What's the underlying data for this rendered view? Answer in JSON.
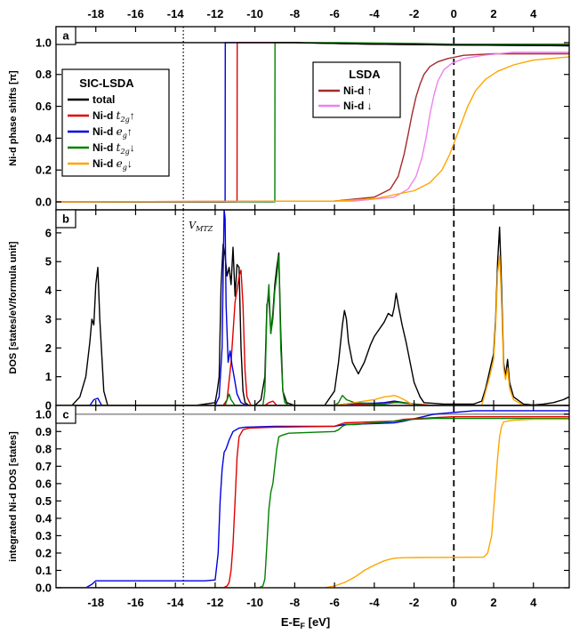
{
  "chart_data": {
    "type": "line",
    "xlabel": "E-E",
    "xlabel_sub": "F",
    "xlabel_unit": " [eV]",
    "xlim": [
      -20,
      5.8
    ],
    "xticks": [
      -18,
      -16,
      -14,
      -12,
      -10,
      -8,
      -6,
      -4,
      -2,
      0,
      2,
      4
    ],
    "vlines": [
      {
        "x": 0,
        "style": "dashed"
      },
      {
        "x": -13.6,
        "style": "dotted",
        "label": "V",
        "label_sub": "MTZ"
      }
    ],
    "colors": {
      "total": "#000000",
      "t2g_up": "#e00000",
      "eg_up": "#0000e0",
      "t2g_dn": "#008000",
      "eg_dn": "#ffa500",
      "lsda_up": "#a52a2a",
      "lsda_dn": "#ee82ee"
    },
    "panels": [
      {
        "label": "a",
        "ylabel": "Ni-d phase shifts [π]",
        "ylim": [
          -0.05,
          1.1
        ],
        "yticks": [
          "0.0",
          "0.2",
          "0.4",
          "0.6",
          "0.8",
          "1.0"
        ],
        "legend_sic": {
          "title": "SIC-LSDA",
          "entries": [
            {
              "prefix": "total",
              "sym": "",
              "sub": "",
              "arrow": ""
            },
            {
              "prefix": "Ni-d ",
              "sym": "t",
              "sub": "2g",
              "arrow": "↑"
            },
            {
              "prefix": "Ni-d ",
              "sym": "e",
              "sub": "g",
              "arrow": "↑"
            },
            {
              "prefix": "Ni-d ",
              "sym": "t",
              "sub": "2g",
              "arrow": "↓"
            },
            {
              "prefix": "Ni-d ",
              "sym": "e",
              "sub": "g",
              "arrow": "↓"
            }
          ]
        },
        "legend_lsda": {
          "title": "LSDA",
          "entries": [
            {
              "prefix": "Ni-d ",
              "arrow": "↑"
            },
            {
              "prefix": "Ni-d ",
              "arrow": "↓"
            }
          ]
        },
        "series": [
          {
            "key": "eg_up",
            "x": [
              -20,
              -11.5,
              -11.49,
              -8,
              -4,
              0,
              5.8
            ],
            "y": [
              0,
              0,
              1.0,
              1.0,
              0.99,
              0.985,
              0.98
            ]
          },
          {
            "key": "t2g_up",
            "x": [
              -20,
              -10.9,
              -10.89,
              -8,
              -4,
              0,
              5.8
            ],
            "y": [
              0,
              0,
              1.0,
              1.0,
              0.99,
              0.985,
              0.985
            ]
          },
          {
            "key": "t2g_dn",
            "x": [
              -20,
              -9.0,
              -8.99,
              -6,
              -2,
              0,
              5.8
            ],
            "y": [
              0,
              0,
              1.0,
              1.0,
              0.995,
              0.99,
              0.99
            ]
          },
          {
            "key": "total",
            "x": [
              -20,
              -8,
              -4,
              0,
              5.8
            ],
            "y": [
              1.0,
              1.0,
              0.99,
              0.985,
              0.98
            ]
          },
          {
            "key": "lsda_up",
            "x": [
              -20,
              -6,
              -4,
              -3.2,
              -2.8,
              -2.5,
              -2.3,
              -2.1,
              -1.9,
              -1.7,
              -1.5,
              -1.2,
              -0.8,
              -0.3,
              0.5,
              2,
              5.8
            ],
            "y": [
              0,
              0.005,
              0.03,
              0.08,
              0.16,
              0.3,
              0.42,
              0.55,
              0.66,
              0.74,
              0.8,
              0.85,
              0.88,
              0.9,
              0.92,
              0.93,
              0.93
            ]
          },
          {
            "key": "lsda_dn",
            "x": [
              -20,
              -5,
              -3,
              -2.3,
              -1.9,
              -1.6,
              -1.4,
              -1.2,
              -1.0,
              -0.8,
              -0.5,
              -0.1,
              0.5,
              1.5,
              3,
              5.8
            ],
            "y": [
              0,
              0.005,
              0.03,
              0.08,
              0.16,
              0.28,
              0.4,
              0.55,
              0.67,
              0.76,
              0.83,
              0.87,
              0.9,
              0.92,
              0.94,
              0.94
            ]
          },
          {
            "key": "eg_dn",
            "x": [
              -20,
              -6,
              -4,
              -2,
              -1.2,
              -0.6,
              -0.2,
              0.1,
              0.4,
              0.7,
              1.1,
              1.6,
              2.2,
              3,
              4,
              5.8
            ],
            "y": [
              0,
              0.005,
              0.02,
              0.07,
              0.12,
              0.2,
              0.3,
              0.4,
              0.5,
              0.6,
              0.7,
              0.77,
              0.82,
              0.86,
              0.89,
              0.91
            ]
          }
        ]
      },
      {
        "label": "b",
        "ylabel": "DOS [states/eV/formula unit]",
        "ylim": [
          0,
          6.8
        ],
        "yticks": [
          "0",
          "1",
          "2",
          "3",
          "4",
          "5",
          "6"
        ],
        "series": [
          {
            "key": "total",
            "x": [
              -20,
              -19.2,
              -18.8,
              -18.5,
              -18.3,
              -18.2,
              -18.1,
              -18.0,
              -17.9,
              -17.8,
              -17.6,
              -17.4,
              -13,
              -12,
              -11.9,
              -11.8,
              -11.7,
              -11.6,
              -11.5,
              -11.4,
              -11.3,
              -11.2,
              -11.1,
              -11.0,
              -10.9,
              -10.8,
              -10.7,
              -10.6,
              -10.5,
              -10.3,
              -10.0,
              -9.7,
              -9.5,
              -9.4,
              -9.3,
              -9.2,
              -9.1,
              -9.0,
              -8.9,
              -8.8,
              -8.7,
              -8.6,
              -8.4,
              -8.0,
              -6.5,
              -6.0,
              -5.8,
              -5.6,
              -5.5,
              -5.4,
              -5.3,
              -5.1,
              -4.8,
              -4.5,
              -4.2,
              -4.0,
              -3.8,
              -3.5,
              -3.3,
              -3.1,
              -3.0,
              -2.9,
              -2.8,
              -2.6,
              -2.4,
              -2.2,
              -2.0,
              -1.7,
              -1.5,
              -0.5,
              1.0,
              1.4,
              1.6,
              1.8,
              2.0,
              2.1,
              2.2,
              2.3,
              2.35,
              2.4,
              2.5,
              2.6,
              2.7,
              2.8,
              3.0,
              3.5,
              4.0,
              4.5,
              5.0,
              5.5,
              5.8
            ],
            "y": [
              0,
              0,
              0.3,
              1.0,
              2.2,
              3.0,
              2.8,
              4.2,
              4.8,
              3.0,
              0.5,
              0,
              0,
              0.1,
              0.5,
              1.0,
              4.2,
              5.6,
              5.2,
              4.5,
              4.8,
              4.2,
              5.5,
              3.8,
              4.9,
              4.8,
              2.0,
              0.5,
              0.1,
              0,
              0,
              0.2,
              1.0,
              3.5,
              3.8,
              2.5,
              3.2,
              4.2,
              4.8,
              5.3,
              2.5,
              0.5,
              0.1,
              0,
              0,
              0.5,
              1.5,
              2.8,
              3.3,
              3.0,
              2.2,
              1.5,
              1.1,
              1.5,
              2.1,
              2.4,
              2.6,
              2.9,
              3.2,
              3.1,
              3.4,
              3.9,
              3.5,
              2.8,
              2.2,
              1.5,
              0.8,
              0.3,
              0.1,
              0.05,
              0.05,
              0.15,
              0.6,
              1.2,
              1.8,
              3.0,
              5.0,
              6.2,
              5.2,
              4.0,
              1.5,
              1.0,
              1.6,
              0.8,
              0.3,
              0.05,
              0.02,
              0.05,
              0.1,
              0.2,
              0.3
            ]
          },
          {
            "key": "t2g_up",
            "x": [
              -20,
              -11.6,
              -11.4,
              -11.2,
              -11.0,
              -10.9,
              -10.8,
              -10.7,
              -10.6,
              -10.5,
              -10.4,
              -10.2,
              -9.5,
              -9.3,
              -9.1,
              -8.9,
              -6,
              -5.5,
              -5.0,
              -4.0,
              -3.5,
              -3.0,
              -2.5,
              -1.0,
              5.8
            ],
            "y": [
              0,
              0,
              0.2,
              1.5,
              3.6,
              4.0,
              4.5,
              4.7,
              3.5,
              1.2,
              0.3,
              0,
              0,
              0.1,
              0.15,
              0,
              0,
              0.05,
              0.05,
              0.05,
              0.1,
              0.12,
              0.08,
              0,
              0
            ]
          },
          {
            "key": "eg_up",
            "x": [
              -20,
              -18.3,
              -18.1,
              -17.9,
              -17.7,
              -12,
              -11.8,
              -11.65,
              -11.55,
              -11.5,
              -11.45,
              -11.35,
              -11.25,
              -11.15,
              -11.05,
              -10.9,
              -10.7,
              -10.4,
              -6,
              -5.5,
              -5.0,
              -4.0,
              -3.5,
              -3.0,
              -2.5,
              -1.5,
              5.8
            ],
            "y": [
              0,
              0,
              0.2,
              0.25,
              0,
              0,
              0.3,
              2.0,
              6.8,
              6.5,
              3.5,
              1.5,
              1.9,
              1.4,
              1.0,
              0.4,
              0.1,
              0,
              0,
              0.05,
              0.08,
              0.08,
              0.1,
              0.15,
              0.1,
              0,
              0
            ]
          },
          {
            "key": "t2g_dn",
            "x": [
              -20,
              -11.5,
              -11.3,
              -11.2,
              -11.0,
              -9.6,
              -9.5,
              -9.4,
              -9.3,
              -9.2,
              -9.1,
              -9.0,
              -8.9,
              -8.8,
              -8.7,
              -8.6,
              -8.5,
              -8.3,
              -6,
              -5.8,
              -5.6,
              -5.4,
              -5.2,
              -5.0,
              -4.5,
              -4.0,
              -3.5,
              -3.0,
              -2.5,
              -2.0,
              -1.5,
              5.8
            ],
            "y": [
              0,
              0,
              0.4,
              0.2,
              0,
              0,
              0.5,
              3.3,
              4.2,
              2.5,
              3.0,
              4.0,
              4.5,
              5.2,
              2.0,
              0.5,
              0.1,
              0,
              0,
              0.1,
              0.35,
              0.2,
              0.15,
              0.1,
              0.08,
              0.05,
              0.05,
              0.1,
              0.1,
              0.05,
              0,
              0
            ]
          },
          {
            "key": "eg_dn",
            "x": [
              -20,
              -6,
              -5.5,
              -5.0,
              -4.5,
              -4.0,
              -3.5,
              -3.2,
              -3.0,
              -2.8,
              -2.5,
              -2.0,
              1.4,
              1.6,
              1.8,
              2.0,
              2.1,
              2.2,
              2.3,
              2.35,
              2.4,
              2.5,
              2.6,
              2.7,
              2.8,
              3.0,
              3.5,
              5.8
            ],
            "y": [
              0,
              0,
              0.05,
              0.1,
              0.15,
              0.2,
              0.3,
              0.32,
              0.35,
              0.3,
              0.2,
              0,
              0,
              0.5,
              1.0,
              1.6,
              2.8,
              4.6,
              5.2,
              4.5,
              3.5,
              1.3,
              0.9,
              1.3,
              0.6,
              0.2,
              0,
              0
            ]
          }
        ]
      },
      {
        "label": "c",
        "ylabel": "integrated Ni-d DOS [states]",
        "ylim": [
          0,
          1.05
        ],
        "yticks": [
          "0.0",
          "0.1",
          "0.2",
          "0.3",
          "0.4",
          "0.5",
          "0.6",
          "0.7",
          "0.8",
          "0.9",
          "1.0"
        ],
        "hline": 1.0,
        "series": [
          {
            "key": "eg_up",
            "x": [
              -20,
              -18.5,
              -18.2,
              -18.0,
              -12.5,
              -12.0,
              -11.85,
              -11.75,
              -11.65,
              -11.55,
              -11.45,
              -11.3,
              -11.1,
              -10.8,
              -10.5,
              -9.0,
              -6.0,
              -5.5,
              -3.0,
              -2.5,
              -1.0,
              0,
              1.0,
              5.8
            ],
            "y": [
              0,
              0,
              0.02,
              0.04,
              0.04,
              0.045,
              0.2,
              0.5,
              0.68,
              0.78,
              0.8,
              0.85,
              0.9,
              0.92,
              0.925,
              0.93,
              0.93,
              0.94,
              0.95,
              0.96,
              1.0,
              1.01,
              1.02,
              1.02
            ]
          },
          {
            "key": "t2g_up",
            "x": [
              -20,
              -11.6,
              -11.4,
              -11.3,
              -11.2,
              -11.1,
              -11.0,
              -10.9,
              -10.8,
              -10.6,
              -10.3,
              -9.0,
              -6.0,
              -5.5,
              -3.0,
              -2.5,
              -1.0,
              0,
              5.8
            ],
            "y": [
              0,
              0,
              0.01,
              0.03,
              0.1,
              0.25,
              0.5,
              0.75,
              0.87,
              0.91,
              0.92,
              0.925,
              0.93,
              0.95,
              0.96,
              0.97,
              0.98,
              0.985,
              0.985
            ]
          },
          {
            "key": "t2g_dn",
            "x": [
              -20,
              -9.8,
              -9.6,
              -9.5,
              -9.4,
              -9.3,
              -9.2,
              -9.1,
              -9.0,
              -8.9,
              -8.8,
              -8.6,
              -8.3,
              -6.0,
              -5.8,
              -5.6,
              -5.4,
              -5.0,
              -4.0,
              -3.0,
              -2.5,
              -2.0,
              -1.0,
              0,
              5.8
            ],
            "y": [
              0,
              0,
              0.01,
              0.05,
              0.25,
              0.45,
              0.55,
              0.6,
              0.7,
              0.8,
              0.87,
              0.88,
              0.89,
              0.9,
              0.91,
              0.93,
              0.94,
              0.94,
              0.95,
              0.96,
              0.965,
              0.97,
              0.975,
              0.975,
              0.975
            ]
          },
          {
            "key": "eg_dn",
            "x": [
              -20,
              -6.5,
              -6.0,
              -5.5,
              -5.0,
              -4.5,
              -4.0,
              -3.5,
              -3.2,
              -3.0,
              -2.8,
              -2.5,
              -2.0,
              1.5,
              1.7,
              1.9,
              2.0,
              2.1,
              2.2,
              2.3,
              2.4,
              2.5,
              2.7,
              3.0,
              4.0,
              5.8
            ],
            "y": [
              0,
              0,
              0.01,
              0.03,
              0.06,
              0.1,
              0.13,
              0.155,
              0.165,
              0.17,
              0.172,
              0.173,
              0.174,
              0.176,
              0.2,
              0.3,
              0.45,
              0.6,
              0.75,
              0.87,
              0.93,
              0.955,
              0.96,
              0.965,
              0.97,
              0.97
            ]
          }
        ]
      }
    ]
  }
}
